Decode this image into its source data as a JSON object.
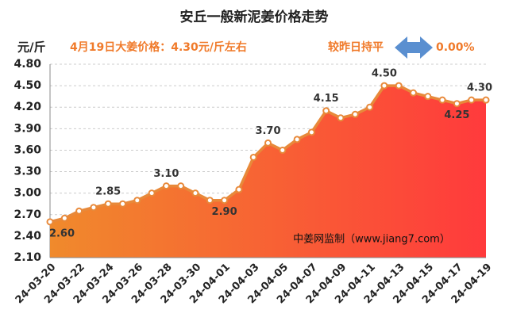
{
  "chart_data": {
    "type": "area-line",
    "title": "安丘一般新泥姜价格走势",
    "y_label": "元/斤",
    "subtitle": "4月19日大姜价格：4.30元/斤左右",
    "change_label": "较昨日持平",
    "change_value": "0.00%",
    "source": "中姜网监制（www.jiang7.com）",
    "categories": [
      "24-03-20",
      null,
      "24-03-22",
      null,
      "24-03-24",
      null,
      "24-03-26",
      null,
      "24-03-28",
      null,
      "24-03-30",
      null,
      "24-04-01",
      null,
      "24-04-03",
      null,
      "24-04-05",
      null,
      "24-04-07",
      null,
      "24-04-09",
      null,
      "24-04-11",
      null,
      "24-04-13",
      null,
      "24-04-15",
      null,
      "24-04-17",
      null,
      "24-04-19"
    ],
    "values": [
      2.6,
      2.65,
      2.75,
      2.8,
      2.85,
      2.85,
      2.9,
      3.0,
      3.1,
      3.1,
      3.0,
      2.9,
      2.9,
      3.05,
      3.5,
      3.7,
      3.6,
      3.75,
      3.85,
      4.15,
      4.05,
      4.1,
      4.2,
      4.5,
      4.5,
      4.4,
      4.35,
      4.3,
      4.25,
      4.3,
      4.3
    ],
    "value_labels": [
      "2.60",
      null,
      null,
      null,
      "2.85",
      null,
      null,
      null,
      "3.10",
      null,
      null,
      null,
      "2.90",
      null,
      null,
      "3.70",
      null,
      null,
      null,
      "4.15",
      null,
      null,
      null,
      "4.50",
      null,
      null,
      null,
      null,
      "4.25",
      null,
      "4.30"
    ],
    "color": "#e8893a",
    "area_colors": [
      "#f08a2c",
      "#ff3a3c"
    ],
    "ylim": [
      2.1,
      4.8
    ],
    "yticks": [
      {
        "value": 2.1,
        "label": "2.10"
      },
      {
        "value": 2.4,
        "label": "2.40"
      },
      {
        "value": 2.7,
        "label": "2.70"
      },
      {
        "value": 3.0,
        "label": "3.00"
      },
      {
        "value": 3.3,
        "label": "3.30"
      },
      {
        "value": 3.6,
        "label": "3.60"
      },
      {
        "value": 3.9,
        "label": "3.90"
      },
      {
        "value": 4.2,
        "label": "4.20"
      },
      {
        "value": 4.5,
        "label": "4.50"
      },
      {
        "value": 4.8,
        "label": "4.80"
      }
    ],
    "grid": true
  }
}
